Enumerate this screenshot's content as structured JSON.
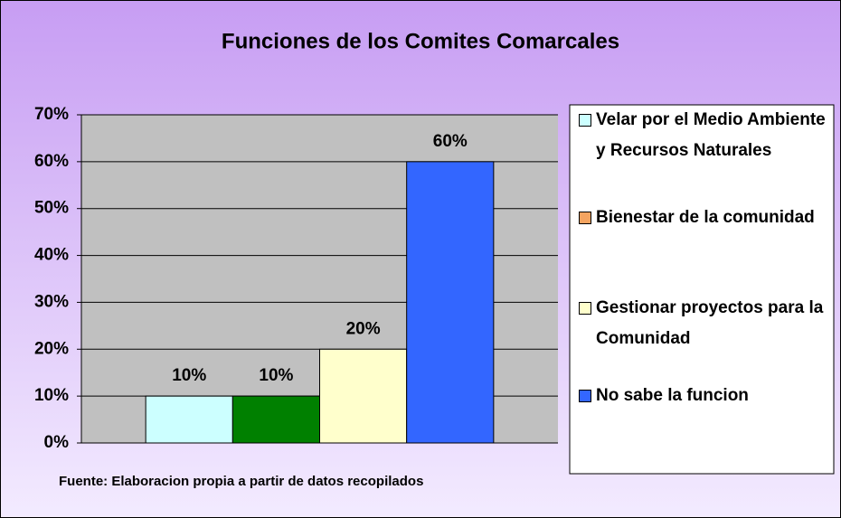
{
  "chart_data": {
    "type": "bar",
    "title": "Funciones de los Comites Comarcales",
    "note": "Fuente: Elaboracion propia a partir de datos recopilados",
    "categories": [
      null
    ],
    "series": [
      {
        "name": "Velar por el Medio Ambiente y Recursos Naturales",
        "color": "#ccffff",
        "legend_color": "#ccffff",
        "values": [
          10
        ],
        "value_labels": [
          "10%"
        ]
      },
      {
        "name": "Bienestar de la comunidad",
        "color": "#008000",
        "legend_color": "#f4a460",
        "values": [
          10
        ],
        "value_labels": [
          "10%"
        ]
      },
      {
        "name": "Gestionar proyectos para la Comunidad",
        "color": "#ffffcc",
        "legend_color": "#ffffcc",
        "values": [
          20
        ],
        "value_labels": [
          "20%"
        ]
      },
      {
        "name": "No sabe la funcion",
        "color": "#3366ff",
        "legend_color": "#3366ff",
        "values": [
          60
        ],
        "value_labels": [
          "60%"
        ]
      }
    ],
    "ylim": [
      0,
      70
    ],
    "yticks": [
      {
        "value": 0,
        "label": "0%"
      },
      {
        "value": 10,
        "label": "10%"
      },
      {
        "value": 20,
        "label": "20%"
      },
      {
        "value": 30,
        "label": "30%"
      },
      {
        "value": 40,
        "label": "40%"
      },
      {
        "value": 50,
        "label": "50%"
      },
      {
        "value": 60,
        "label": "60%"
      },
      {
        "value": 70,
        "label": "70%"
      }
    ],
    "grid": true,
    "legend": "right"
  }
}
